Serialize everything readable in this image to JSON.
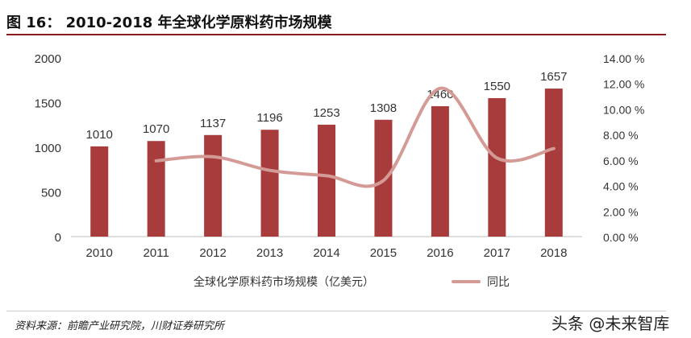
{
  "header": {
    "title": "图 16： 2010-2018 年全球化学原料药市场规模"
  },
  "footer": {
    "source": "资料来源：前瞻产业研究院，川财证券研究所",
    "watermark": "头条 @未来智库"
  },
  "colors": {
    "bar": "#a83c3c",
    "line": "#d49a96",
    "rule": "#8b1a1a"
  },
  "chart_data": {
    "type": "bar",
    "categories": [
      "2010",
      "2011",
      "2012",
      "2013",
      "2014",
      "2015",
      "2016",
      "2017",
      "2018"
    ],
    "series": [
      {
        "name": "全球化学原料药市场规模（亿美元）",
        "type": "bar",
        "axis": "left",
        "values": [
          1010,
          1070,
          1137,
          1196,
          1253,
          1308,
          1460,
          1550,
          1657
        ]
      },
      {
        "name": "同比",
        "type": "line",
        "axis": "right",
        "values": [
          null,
          5.94,
          6.26,
          5.19,
          4.77,
          4.39,
          11.62,
          6.16,
          6.9
        ]
      }
    ],
    "data_labels": [
      "1010",
      "1070",
      "1137",
      "1196",
      "1253",
      "1308",
      "1460",
      "1550",
      "1657"
    ],
    "y_left": {
      "ticks": [
        "0",
        "500",
        "1000",
        "1500",
        "2000"
      ],
      "min": 0,
      "max": 2000
    },
    "y_right": {
      "ticks": [
        "0.00 %",
        "2.00 %",
        "4.00 %",
        "6.00 %",
        "8.00 %",
        "10.00 %",
        "12.00 %",
        "14.00 %"
      ],
      "min": 0,
      "max": 14
    },
    "legend": {
      "bar_label": "全球化学原料药市场规模（亿美元）",
      "line_label": "同比",
      "position": "bottom"
    }
  }
}
